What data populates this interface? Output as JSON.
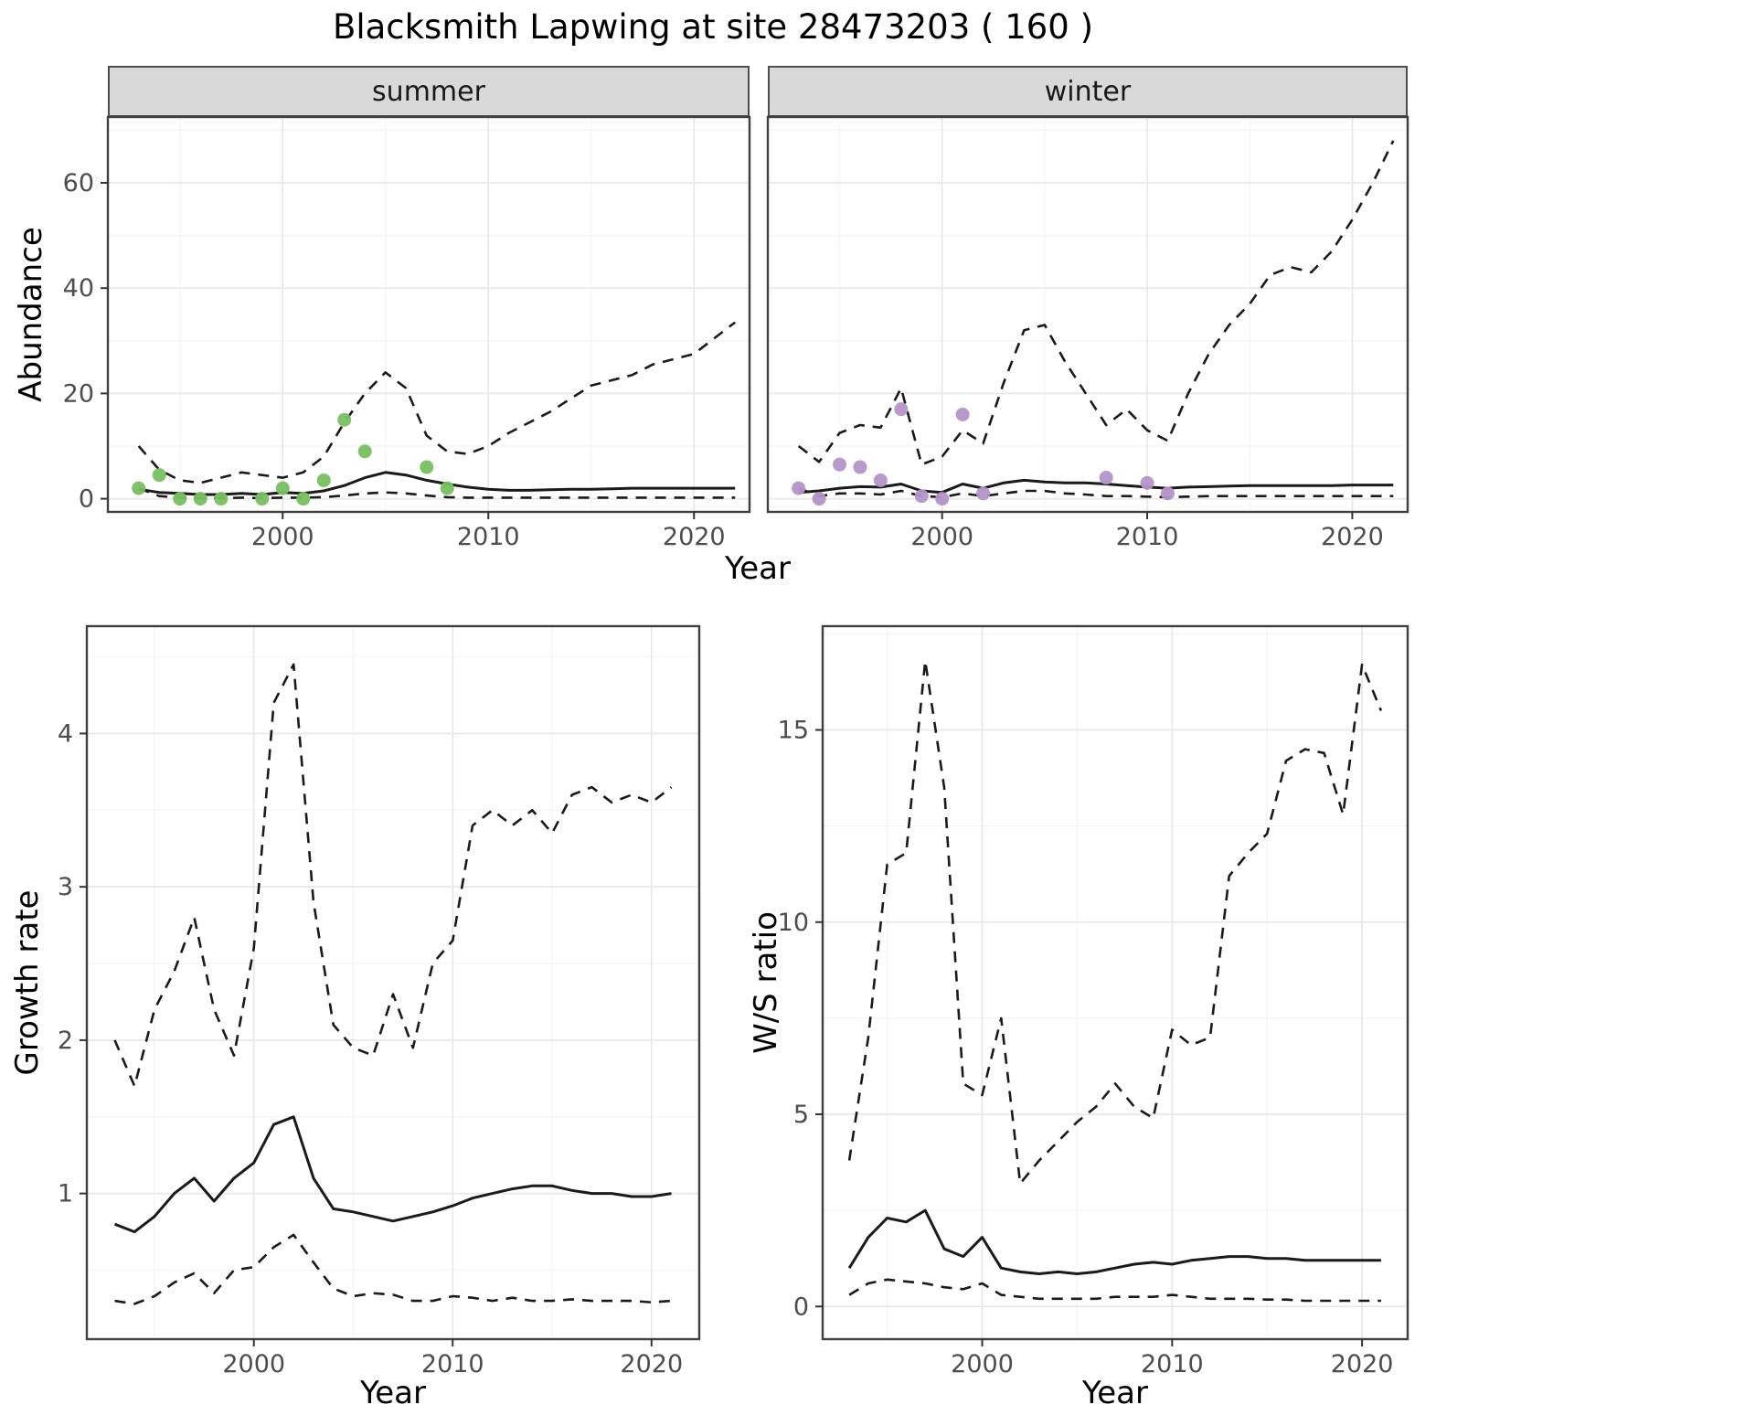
{
  "title": "Blacksmith Lapwing at site 28473203 ( 160 )",
  "colors": {
    "summer_points": "#77c05f",
    "winter_points": "#b394c9",
    "line": "#1a1a1a",
    "grid_major": "#e8e8e8",
    "grid_minor": "#f4f4f4",
    "panel_border": "#404040",
    "strip_bg": "#d9d9d9",
    "tick_mark": "#333333",
    "tick_text": "#4d4d4d"
  },
  "top_row": {
    "ylabel": "Abundance",
    "xlabel": "Year",
    "facets": [
      "summer",
      "winter"
    ]
  },
  "chart_data": [
    {
      "id": "abundance-summer",
      "type": "line",
      "facet": "summer",
      "xlabel": "Year",
      "ylabel": "Abundance",
      "xlim": [
        1991.5,
        2022.7
      ],
      "ylim": [
        -2.5,
        72.5
      ],
      "xticks": [
        2000,
        2010,
        2020
      ],
      "yticks": [
        0,
        20,
        40,
        60
      ],
      "xticks_minor": [
        1995,
        2005,
        2015
      ],
      "yticks_minor": [
        10,
        30,
        50,
        70
      ],
      "x": [
        1993,
        1994,
        1995,
        1996,
        1997,
        1998,
        1999,
        2000,
        2001,
        2002,
        2003,
        2004,
        2005,
        2006,
        2007,
        2008,
        2009,
        2010,
        2011,
        2012,
        2013,
        2014,
        2015,
        2016,
        2017,
        2018,
        2019,
        2020,
        2021,
        2022
      ],
      "series": [
        {
          "name": "upper_ci",
          "style": "dashed",
          "values": [
            10,
            5.5,
            3.5,
            3.0,
            4.0,
            5.0,
            4.5,
            4.0,
            5.0,
            8.0,
            14.5,
            20,
            24,
            21,
            12,
            9,
            8.5,
            10,
            12.5,
            14.5,
            16.5,
            19,
            21.5,
            22.5,
            23.5,
            25.5,
            26.5,
            27.5,
            30.5,
            33.5
          ]
        },
        {
          "name": "lower_ci",
          "style": "dashed",
          "values": [
            2,
            0.5,
            0.2,
            0.1,
            0.1,
            0.2,
            0.1,
            0.2,
            0.2,
            0.3,
            0.6,
            1.0,
            1.2,
            1.0,
            0.6,
            0.3,
            0.2,
            0.2,
            0.2,
            0.2,
            0.2,
            0.2,
            0.2,
            0.2,
            0.2,
            0.2,
            0.2,
            0.2,
            0.2,
            0.2
          ]
        },
        {
          "name": "median",
          "style": "solid",
          "values": [
            1.8,
            1.2,
            1.0,
            0.8,
            0.8,
            1.0,
            0.8,
            1.2,
            1.0,
            1.5,
            2.5,
            4.0,
            5.0,
            4.5,
            3.5,
            2.8,
            2.2,
            1.8,
            1.6,
            1.6,
            1.7,
            1.8,
            1.8,
            1.9,
            2.0,
            2.0,
            2.0,
            2.0,
            2.0,
            2.0
          ]
        }
      ],
      "points": {
        "name": "observed-counts",
        "color_key": "summer_points",
        "x": [
          1993,
          1994,
          1995,
          1996,
          1997,
          1999,
          2000,
          2001,
          2002,
          2003,
          2004,
          2007,
          2008
        ],
        "y": [
          2,
          4.5,
          0,
          0,
          0,
          0,
          2,
          0,
          3.5,
          15,
          9,
          6,
          2
        ]
      }
    },
    {
      "id": "abundance-winter",
      "type": "line",
      "facet": "winter",
      "xlabel": "Year",
      "ylabel": "Abundance",
      "xlim": [
        1991.5,
        2022.7
      ],
      "ylim": [
        -2.5,
        72.5
      ],
      "xticks": [
        2000,
        2010,
        2020
      ],
      "yticks": [
        0,
        20,
        40,
        60
      ],
      "xticks_minor": [
        1995,
        2005,
        2015
      ],
      "yticks_minor": [
        10,
        30,
        50,
        70
      ],
      "x": [
        1993,
        1994,
        1995,
        1996,
        1997,
        1998,
        1999,
        2000,
        2001,
        2002,
        2003,
        2004,
        2005,
        2006,
        2007,
        2008,
        2009,
        2010,
        2011,
        2012,
        2013,
        2014,
        2015,
        2016,
        2017,
        2018,
        2019,
        2020,
        2021,
        2022
      ],
      "series": [
        {
          "name": "upper_ci",
          "style": "dashed",
          "values": [
            10,
            7,
            12.5,
            14,
            13.5,
            21,
            6.5,
            8,
            13,
            10.5,
            22,
            32,
            33,
            26,
            20,
            14,
            17,
            13,
            11,
            20,
            27.5,
            33,
            37,
            42.5,
            44,
            43,
            47,
            53,
            60,
            68
          ]
        },
        {
          "name": "lower_ci",
          "style": "dashed",
          "values": [
            2,
            0.5,
            1,
            1,
            0.8,
            1.5,
            0.5,
            0.3,
            1,
            0.5,
            1,
            1.5,
            1.5,
            1,
            0.8,
            0.5,
            0.5,
            0.4,
            0.3,
            0.4,
            0.5,
            0.5,
            0.5,
            0.5,
            0.5,
            0.5,
            0.5,
            0.5,
            0.5,
            0.5
          ]
        },
        {
          "name": "median",
          "style": "solid",
          "values": [
            1.2,
            1.5,
            2.0,
            2.3,
            2.2,
            2.8,
            1.5,
            1.2,
            2.8,
            2.0,
            3.0,
            3.5,
            3.2,
            3.0,
            3.0,
            2.8,
            2.5,
            2.2,
            2.0,
            2.2,
            2.3,
            2.4,
            2.5,
            2.5,
            2.5,
            2.5,
            2.5,
            2.6,
            2.6,
            2.6
          ]
        }
      ],
      "points": {
        "name": "observed-counts",
        "color_key": "winter_points",
        "x": [
          1993,
          1994,
          1995,
          1996,
          1997,
          1998,
          1999,
          2000,
          2001,
          2002,
          2008,
          2010,
          2011
        ],
        "y": [
          2,
          0,
          6.5,
          6,
          3.5,
          17,
          0.5,
          0,
          16,
          1,
          4,
          3,
          1
        ]
      }
    },
    {
      "id": "growth-rate",
      "type": "line",
      "xlabel": "Year",
      "ylabel": "Growth rate",
      "xlim": [
        1991.6,
        2022.4
      ],
      "ylim": [
        0.05,
        4.7
      ],
      "xticks": [
        2000,
        2010,
        2020
      ],
      "yticks": [
        1,
        2,
        3,
        4
      ],
      "xticks_minor": [
        1995,
        2005,
        2015
      ],
      "yticks_minor": [
        0.5,
        1.5,
        2.5,
        3.5,
        4.5
      ],
      "x": [
        1993,
        1994,
        1995,
        1996,
        1997,
        1998,
        1999,
        2000,
        2001,
        2002,
        2003,
        2004,
        2005,
        2006,
        2007,
        2008,
        2009,
        2010,
        2011,
        2012,
        2013,
        2014,
        2015,
        2016,
        2017,
        2018,
        2019,
        2020,
        2021
      ],
      "series": [
        {
          "name": "upper_ci",
          "style": "dashed",
          "values": [
            2.0,
            1.7,
            2.2,
            2.45,
            2.8,
            2.2,
            1.9,
            2.6,
            4.2,
            4.45,
            2.9,
            2.1,
            1.95,
            1.9,
            2.3,
            1.95,
            2.5,
            2.65,
            3.4,
            3.5,
            3.4,
            3.5,
            3.35,
            3.6,
            3.65,
            3.55,
            3.6,
            3.55,
            3.65
          ]
        },
        {
          "name": "lower_ci",
          "style": "dashed",
          "values": [
            0.3,
            0.28,
            0.33,
            0.42,
            0.48,
            0.35,
            0.5,
            0.52,
            0.65,
            0.73,
            0.55,
            0.38,
            0.33,
            0.35,
            0.34,
            0.3,
            0.3,
            0.33,
            0.32,
            0.3,
            0.32,
            0.3,
            0.3,
            0.31,
            0.3,
            0.3,
            0.3,
            0.29,
            0.3
          ]
        },
        {
          "name": "median",
          "style": "solid",
          "values": [
            0.8,
            0.75,
            0.85,
            1.0,
            1.1,
            0.95,
            1.1,
            1.2,
            1.45,
            1.5,
            1.1,
            0.9,
            0.88,
            0.85,
            0.82,
            0.85,
            0.88,
            0.92,
            0.97,
            1.0,
            1.03,
            1.05,
            1.05,
            1.02,
            1.0,
            1.0,
            0.98,
            0.98,
            1.0
          ]
        }
      ]
    },
    {
      "id": "ws-ratio",
      "type": "line",
      "xlabel": "Year",
      "ylabel": "W/S ratio",
      "xlim": [
        1991.6,
        2022.4
      ],
      "ylim": [
        -0.85,
        17.7
      ],
      "xticks": [
        2000,
        2010,
        2020
      ],
      "yticks": [
        0,
        5,
        10,
        15
      ],
      "xticks_minor": [
        1995,
        2005,
        2015
      ],
      "yticks_minor": [
        2.5,
        7.5,
        12.5,
        17.5
      ],
      "x": [
        1993,
        1994,
        1995,
        1996,
        1997,
        1998,
        1999,
        2000,
        2001,
        2002,
        2003,
        2004,
        2005,
        2006,
        2007,
        2008,
        2009,
        2010,
        2011,
        2012,
        2013,
        2014,
        2015,
        2016,
        2017,
        2018,
        2019,
        2020,
        2021
      ],
      "series": [
        {
          "name": "upper_ci",
          "style": "dashed",
          "values": [
            3.8,
            7.0,
            11.5,
            11.8,
            16.8,
            13.5,
            5.8,
            5.5,
            7.5,
            3.2,
            3.8,
            4.3,
            4.8,
            5.2,
            5.8,
            5.2,
            4.9,
            7.2,
            6.8,
            7.0,
            11.2,
            11.8,
            12.3,
            14.2,
            14.5,
            14.4,
            12.8,
            16.7,
            15.5
          ]
        },
        {
          "name": "lower_ci",
          "style": "dashed",
          "values": [
            0.3,
            0.6,
            0.7,
            0.65,
            0.6,
            0.5,
            0.45,
            0.6,
            0.3,
            0.25,
            0.2,
            0.2,
            0.2,
            0.2,
            0.25,
            0.25,
            0.25,
            0.3,
            0.25,
            0.2,
            0.2,
            0.2,
            0.18,
            0.18,
            0.15,
            0.15,
            0.15,
            0.15,
            0.15
          ]
        },
        {
          "name": "median",
          "style": "solid",
          "values": [
            1.0,
            1.8,
            2.3,
            2.2,
            2.5,
            1.5,
            1.3,
            1.8,
            1.0,
            0.9,
            0.85,
            0.9,
            0.85,
            0.9,
            1.0,
            1.1,
            1.15,
            1.1,
            1.2,
            1.25,
            1.3,
            1.3,
            1.25,
            1.25,
            1.2,
            1.2,
            1.2,
            1.2,
            1.2
          ]
        }
      ]
    }
  ]
}
